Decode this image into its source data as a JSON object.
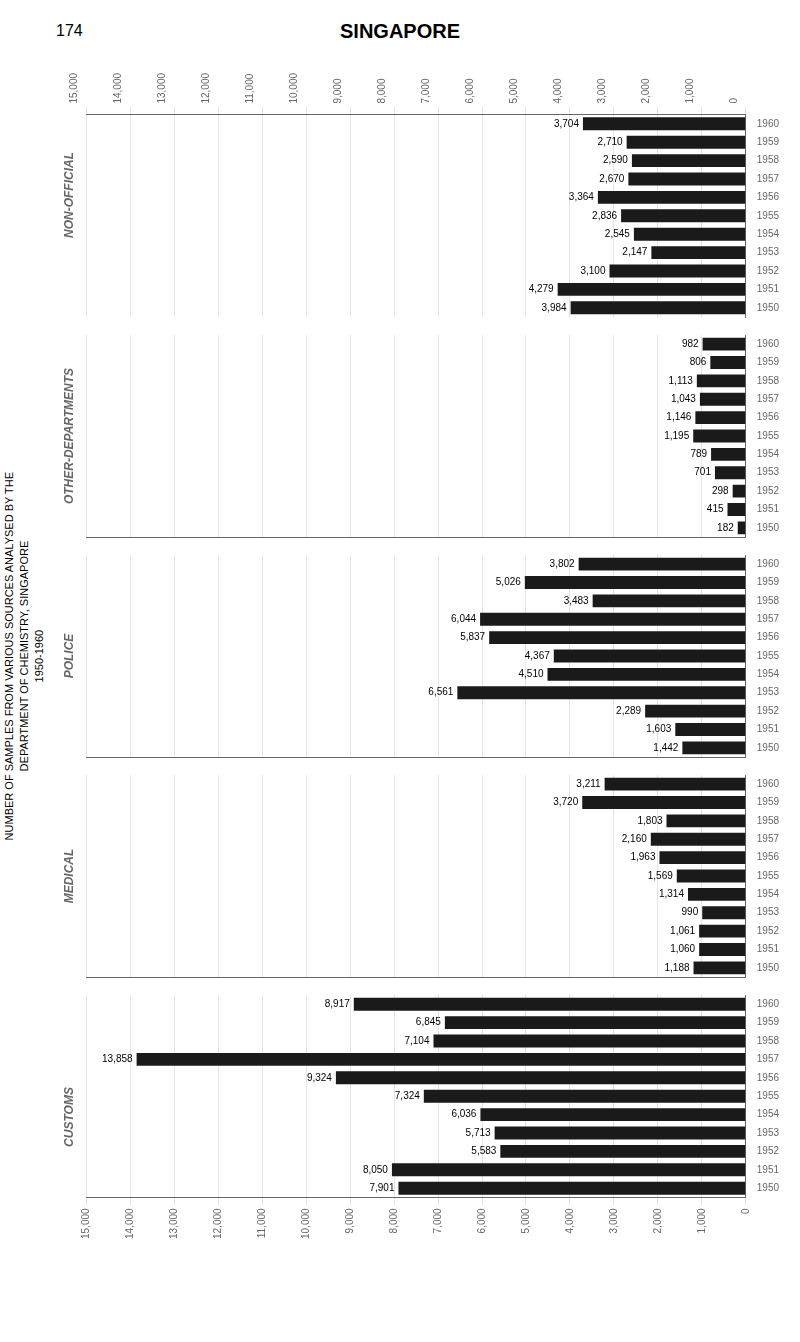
{
  "chart_data": [
    {
      "type": "bar",
      "orientation": "horizontal",
      "title": "SINGAPORE",
      "subtitle": [
        "NUMBER OF SAMPLES FROM VARIOUS SOURCES ANALYSED BY THE",
        "DEPARTMENT OF CHEMISTRY, SINGAPORE",
        "1950-1960"
      ],
      "annotations": [
        "174"
      ],
      "ylabel": "NON-OFFICIAL",
      "categories": [
        "1960",
        "1959",
        "1958",
        "1957",
        "1956",
        "1955",
        "1954",
        "1953",
        "1952",
        "1951",
        "1950"
      ],
      "values": [
        3704,
        2710,
        2590,
        2670,
        3364,
        2836,
        2545,
        2147,
        3100,
        4279,
        3984
      ],
      "value_labels": [
        "3,704",
        "2,710",
        "2,590",
        "2,670",
        "3,364",
        "2,836",
        "2,545",
        "2,147",
        "3,100",
        "4,279",
        "3,984"
      ],
      "data_labels": true,
      "color": "#1a1a1a",
      "xlim": [
        15000,
        0
      ],
      "xticks": [
        0,
        {
          "value": 1000,
          "label": "1,000"
        },
        {
          "value": 2000,
          "label": "2,000"
        },
        {
          "value": 3000,
          "label": "3,000"
        },
        {
          "value": 4000,
          "label": "4,000"
        },
        {
          "value": 5000,
          "label": "5,000"
        },
        {
          "value": 6000,
          "label": "6,000"
        },
        {
          "value": 7000,
          "label": "7,000"
        },
        {
          "value": 8000,
          "label": "8,000"
        },
        {
          "value": 9000,
          "label": "9,000"
        },
        {
          "value": 10000,
          "label": "10,000"
        },
        {
          "value": 11000,
          "label": "11,000"
        },
        {
          "value": 12000,
          "label": "12,000"
        },
        {
          "value": 13000,
          "label": "13,000"
        },
        {
          "value": 14000,
          "label": "14,000"
        },
        {
          "value": 15000,
          "label": "15,000"
        }
      ],
      "grid": true
    },
    {
      "type": "bar",
      "orientation": "horizontal",
      "ylabel": "OTHER-DEPARTMENTS",
      "categories": [
        "1960",
        "1959",
        "1958",
        "1957",
        "1956",
        "1955",
        "1954",
        "1953",
        "1952",
        "1951",
        "1950"
      ],
      "values": [
        982,
        806,
        1113,
        1043,
        1146,
        1195,
        789,
        701,
        298,
        415,
        182
      ],
      "value_labels": [
        "982",
        "806",
        "1,113",
        "1,043",
        "1,146",
        "1,195",
        "789",
        "701",
        "298",
        "415",
        "182"
      ],
      "data_labels": true,
      "color": "#1a1a1a",
      "xlim": [
        15000,
        0
      ],
      "xticks": [
        0,
        {
          "value": 1000,
          "label": "1,000"
        },
        {
          "value": 2000,
          "label": "2,000"
        },
        {
          "value": 3000,
          "label": "3,000"
        },
        {
          "value": 4000,
          "label": "4,000"
        },
        {
          "value": 5000,
          "label": "5,000"
        },
        {
          "value": 6000,
          "label": "6,000"
        },
        {
          "value": 7000,
          "label": "7,000"
        },
        {
          "value": 8000,
          "label": "8,000"
        },
        {
          "value": 9000,
          "label": "9,000"
        },
        {
          "value": 10000,
          "label": "10,000"
        },
        {
          "value": 11000,
          "label": "11,000"
        },
        {
          "value": 12000,
          "label": "12,000"
        },
        {
          "value": 13000,
          "label": "13,000"
        },
        {
          "value": 14000,
          "label": "14,000"
        },
        {
          "value": 15000,
          "label": "15,000"
        }
      ],
      "tick_labels": "y",
      "grid": true
    },
    {
      "type": "bar",
      "orientation": "horizontal",
      "ylabel": "POLICE",
      "categories": [
        "1960",
        "1959",
        "1958",
        "1957",
        "1956",
        "1955",
        "1954",
        "1953",
        "1952",
        "1951",
        "1950"
      ],
      "values": [
        3802,
        5026,
        3483,
        6044,
        5837,
        4367,
        4510,
        6561,
        2289,
        1603,
        1442
      ],
      "value_labels": [
        "3,802",
        "5,026",
        "3,483",
        "6,044",
        "5,837",
        "4,367",
        "4,510",
        "6,561",
        "2,289",
        "1,603",
        "1,442"
      ],
      "data_labels": true,
      "color": "#1a1a1a",
      "xlim": [
        15000,
        0
      ],
      "xticks": [
        0,
        {
          "value": 1000,
          "label": "1,000"
        },
        {
          "value": 2000,
          "label": "2,000"
        },
        {
          "value": 3000,
          "label": "3,000"
        },
        {
          "value": 4000,
          "label": "4,000"
        },
        {
          "value": 5000,
          "label": "5,000"
        },
        {
          "value": 6000,
          "label": "6,000"
        },
        {
          "value": 7000,
          "label": "7,000"
        },
        {
          "value": 8000,
          "label": "8,000"
        },
        {
          "value": 9000,
          "label": "9,000"
        },
        {
          "value": 10000,
          "label": "10,000"
        },
        {
          "value": 11000,
          "label": "11,000"
        },
        {
          "value": 12000,
          "label": "12,000"
        },
        {
          "value": 13000,
          "label": "13,000"
        },
        {
          "value": 14000,
          "label": "14,000"
        },
        {
          "value": 15000,
          "label": "15,000"
        }
      ],
      "tick_labels": "y",
      "grid": true
    },
    {
      "type": "bar",
      "orientation": "horizontal",
      "ylabel": "MEDICAL",
      "categories": [
        "1960",
        "1959",
        "1958",
        "1957",
        "1956",
        "1955",
        "1954",
        "1953",
        "1952",
        "1951",
        "1950"
      ],
      "values": [
        3211,
        3720,
        1803,
        2160,
        1963,
        1569,
        1314,
        990,
        1061,
        1060,
        1188
      ],
      "value_labels": [
        "3,211",
        "3,720",
        "1,803",
        "2,160",
        "1,963",
        "1,569",
        "1,314",
        "990",
        "1,061",
        "1,060",
        "1,188"
      ],
      "data_labels": true,
      "color": "#1a1a1a",
      "xlim": [
        15000,
        0
      ],
      "xticks": [
        0,
        {
          "value": 1000,
          "label": "1,000"
        },
        {
          "value": 2000,
          "label": "2,000"
        },
        {
          "value": 3000,
          "label": "3,000"
        },
        {
          "value": 4000,
          "label": "4,000"
        },
        {
          "value": 5000,
          "label": "5,000"
        },
        {
          "value": 6000,
          "label": "6,000"
        },
        {
          "value": 7000,
          "label": "7,000"
        },
        {
          "value": 8000,
          "label": "8,000"
        },
        {
          "value": 9000,
          "label": "9,000"
        },
        {
          "value": 10000,
          "label": "10,000"
        },
        {
          "value": 11000,
          "label": "11,000"
        },
        {
          "value": 12000,
          "label": "12,000"
        },
        {
          "value": 13000,
          "label": "13,000"
        },
        {
          "value": 14000,
          "label": "14,000"
        },
        {
          "value": 15000,
          "label": "15,000"
        }
      ],
      "tick_labels": "y",
      "grid": true
    },
    {
      "type": "bar",
      "orientation": "horizontal",
      "ylabel": "CUSTOMS",
      "categories": [
        "1960",
        "1959",
        "1958",
        "1957",
        "1956",
        "1955",
        "1954",
        "1953",
        "1952",
        "1951",
        "1950"
      ],
      "values": [
        8917,
        6845,
        7104,
        13858,
        9324,
        7324,
        6036,
        5713,
        5583,
        8050,
        7901
      ],
      "value_labels": [
        "8,917",
        "6,845",
        "7,104",
        "13,858",
        "9,324",
        "7,324",
        "6,036",
        "5,713",
        "5,583",
        "8,050",
        "7,901"
      ],
      "data_labels": true,
      "color": "#1a1a1a",
      "xlim": [
        15000,
        0
      ],
      "xticks": [
        0,
        {
          "value": 1000,
          "label": "1,000"
        },
        {
          "value": 2000,
          "label": "2,000"
        },
        {
          "value": 3000,
          "label": "3,000"
        },
        {
          "value": 4000,
          "label": "4,000"
        },
        {
          "value": 5000,
          "label": "5,000"
        },
        {
          "value": 6000,
          "label": "6,000"
        },
        {
          "value": 7000,
          "label": "7,000"
        },
        {
          "value": 8000,
          "label": "8,000"
        },
        {
          "value": 9000,
          "label": "9,000"
        },
        {
          "value": 10000,
          "label": "10,000"
        },
        {
          "value": 11000,
          "label": "11,000"
        },
        {
          "value": 12000,
          "label": "12,000"
        },
        {
          "value": 13000,
          "label": "13,000"
        },
        {
          "value": 14000,
          "label": "14,000"
        },
        {
          "value": 15000,
          "label": "15,000"
        }
      ],
      "grid": true
    }
  ]
}
